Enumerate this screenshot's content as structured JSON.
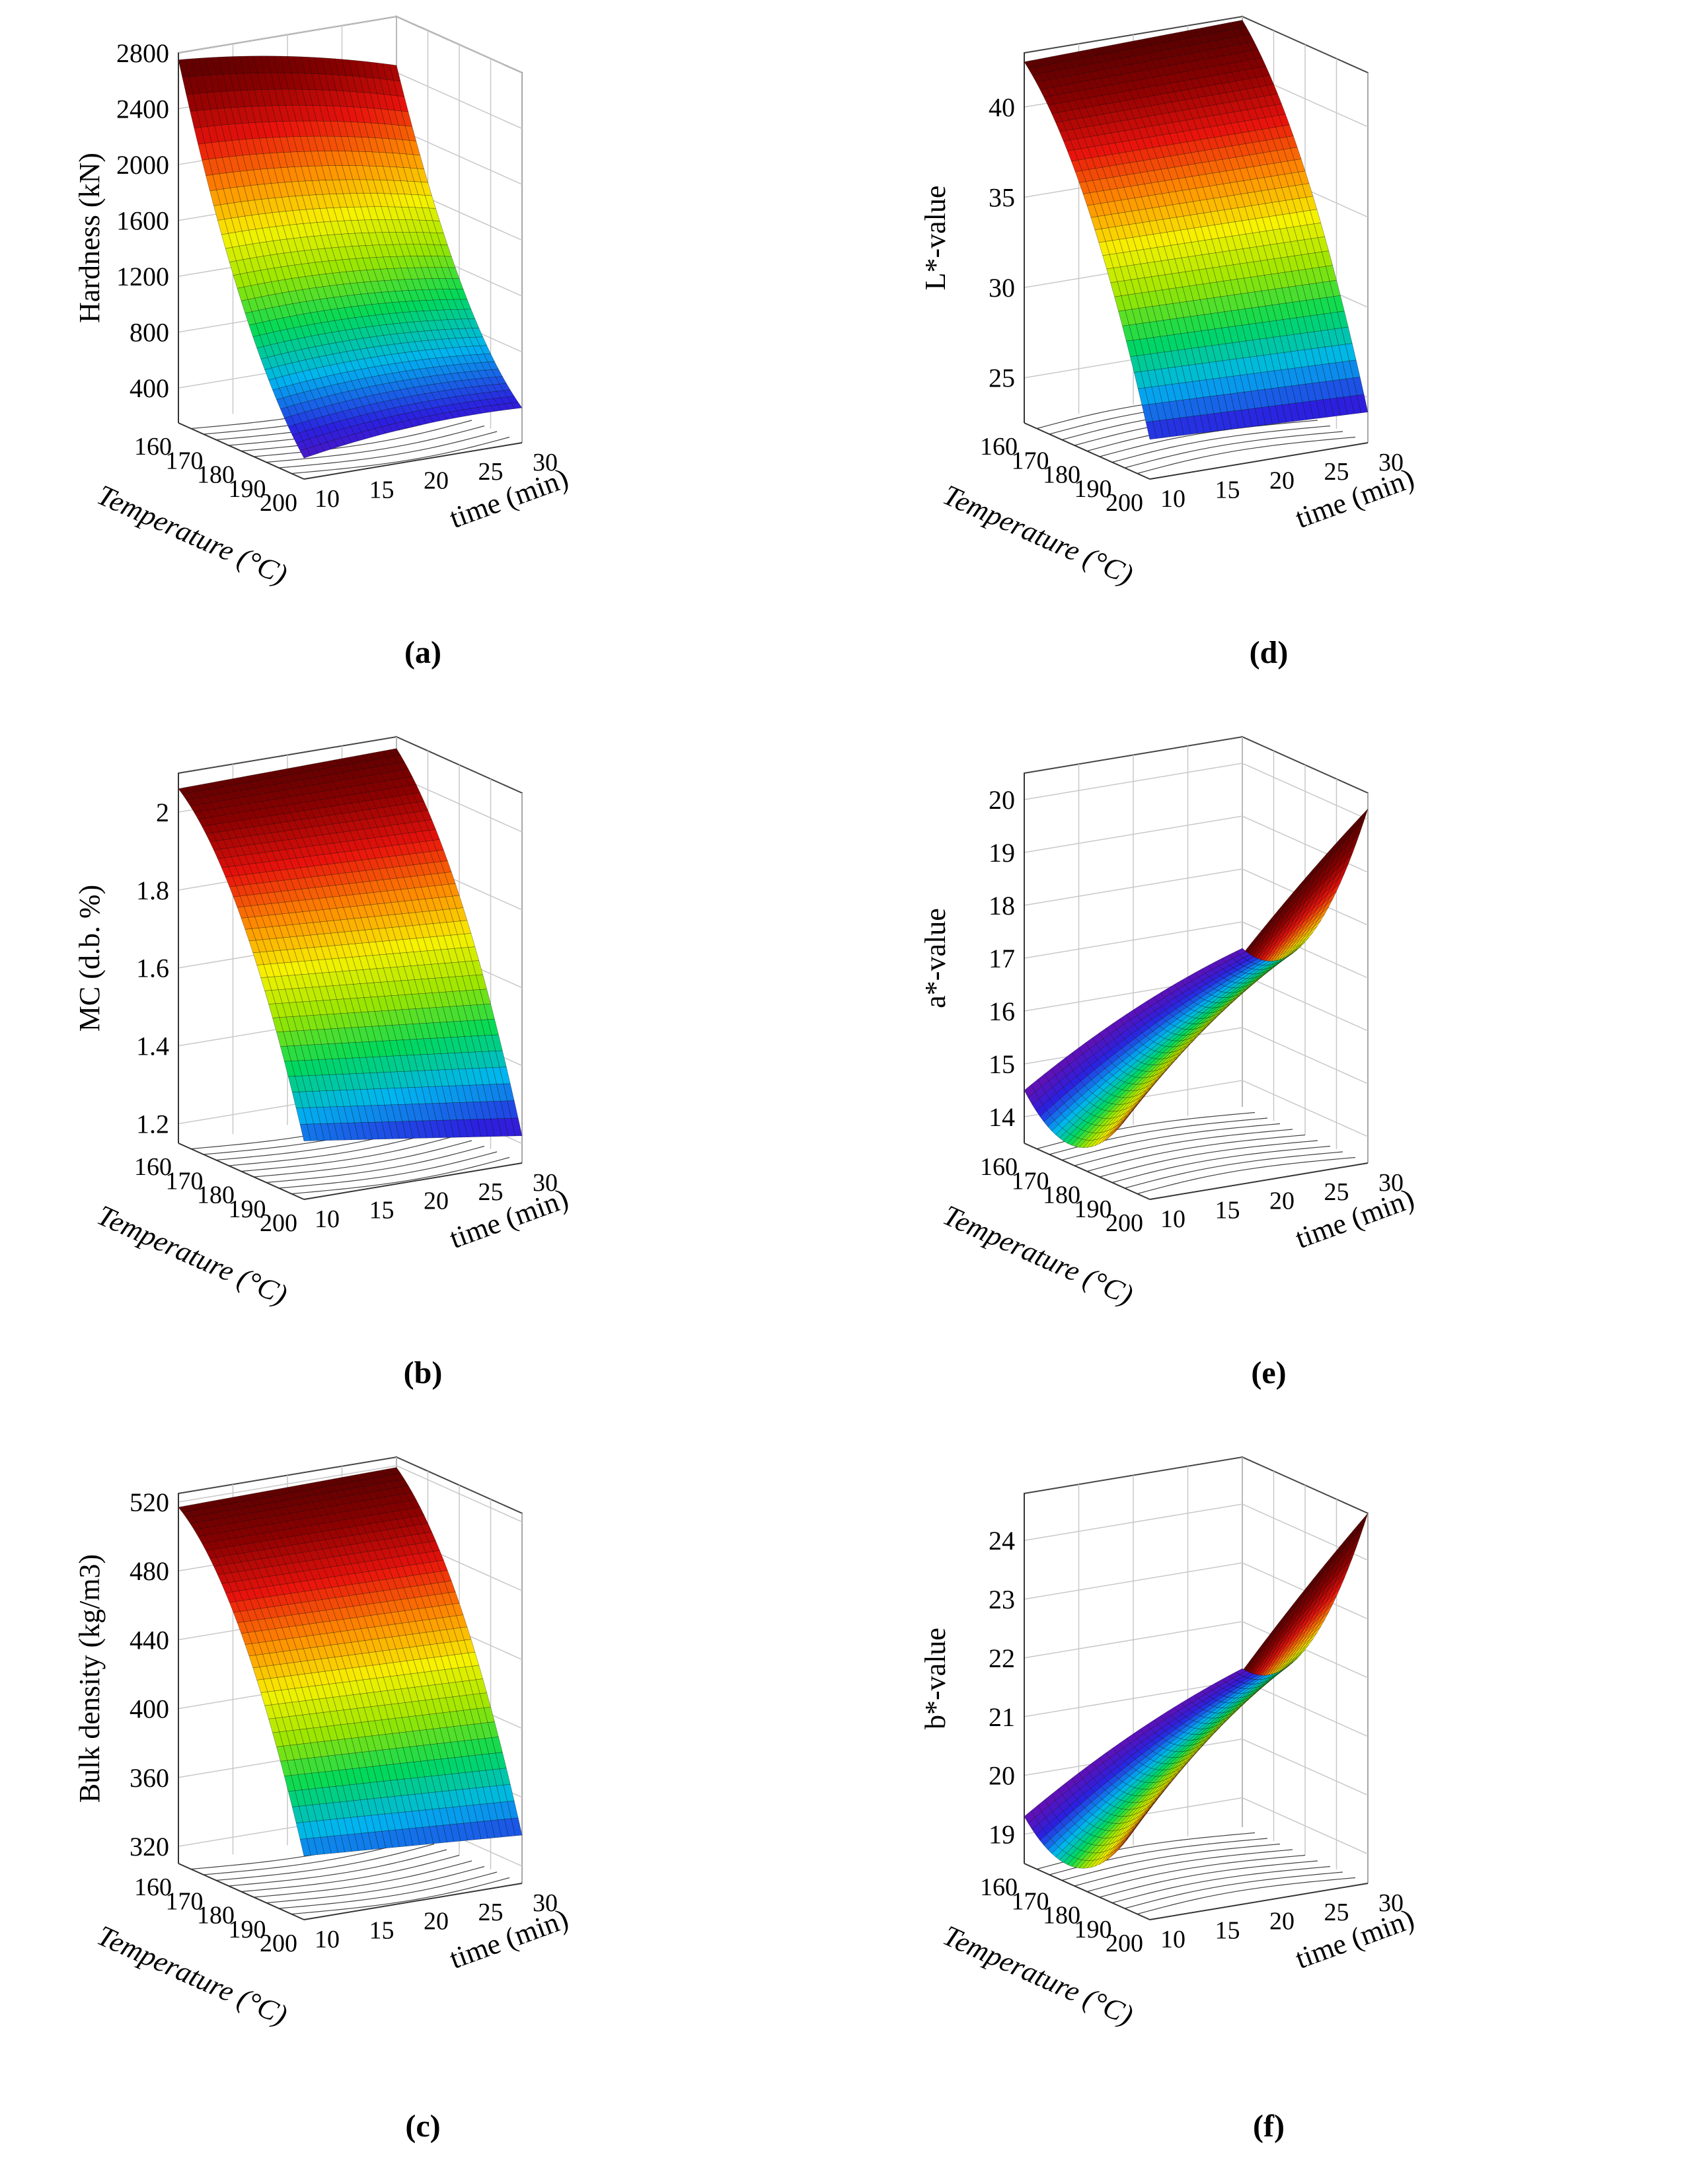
{
  "figure": {
    "panels": [
      {
        "caption": "(a)"
      },
      {
        "caption": "(d)"
      },
      {
        "caption": "(b)"
      },
      {
        "caption": "(e)"
      },
      {
        "caption": "(c)"
      },
      {
        "caption": "(f)"
      }
    ]
  },
  "colors": {
    "colormap": [
      "#6a0dad",
      "#2b20e0",
      "#00b5f0",
      "#00d95a",
      "#9be600",
      "#f7f200",
      "#ff8c00",
      "#e8120c",
      "#8b0000",
      "#4d0000"
    ],
    "grid": "#c8c8c8",
    "mesh": "#000000",
    "contour": "#404040"
  },
  "chart_data": [
    {
      "type": "surface",
      "panel_label": "(a)",
      "zlabel": "Hardness (kN)",
      "xlabel": "Temperature (°C)",
      "ylabel": "time (min)",
      "x_ticks": [
        160,
        170,
        180,
        190,
        200
      ],
      "y_ticks": [
        10,
        15,
        20,
        25,
        30
      ],
      "z_ticks": [
        400,
        800,
        1200,
        1600,
        2000,
        2400,
        2800
      ],
      "zlim": [
        150,
        2800
      ],
      "corner_values": {
        "t160_m10": 2750,
        "t160_m30": 2450,
        "t200_m10": 300,
        "t200_m30": 400,
        "curvature": 300
      },
      "color_order": "value"
    },
    {
      "type": "surface",
      "panel_label": "(d)",
      "zlabel": "L*-value",
      "xlabel": "Temperature (°C)",
      "ylabel": "time (min)",
      "x_ticks": [
        160,
        170,
        180,
        190,
        200
      ],
      "y_ticks": [
        10,
        15,
        20,
        25,
        30
      ],
      "z_ticks": [
        25,
        30,
        35,
        40
      ],
      "zlim": [
        22.5,
        43
      ],
      "corner_values": {
        "t160_m10": 42.5,
        "t160_m30": 42.8,
        "t200_m10": 24.7,
        "t200_m30": 24.2,
        "curvature": -2.5
      },
      "color_order": "value"
    },
    {
      "type": "surface",
      "panel_label": "(b)",
      "zlabel": "MC (d.b. %)",
      "xlabel": "Temperature (°C)",
      "ylabel": "time (min)",
      "x_ticks": [
        160,
        170,
        180,
        190,
        200
      ],
      "y_ticks": [
        10,
        15,
        20,
        25,
        30
      ],
      "z_ticks": [
        1.2,
        1.4,
        1.6,
        1.8,
        2.0
      ],
      "zlim": [
        1.15,
        2.1
      ],
      "corner_values": {
        "t160_m10": 2.06,
        "t160_m30": 2.07,
        "t200_m10": 1.3,
        "t200_m30": 1.22,
        "curvature": -0.12
      },
      "color_order": "value"
    },
    {
      "type": "surface",
      "panel_label": "(e)",
      "zlabel": "a*-value",
      "xlabel": "Temperature (°C)",
      "ylabel": "time (min)",
      "x_ticks": [
        160,
        170,
        180,
        190,
        200
      ],
      "y_ticks": [
        10,
        15,
        20,
        25,
        30
      ],
      "z_ticks": [
        14,
        15,
        16,
        17,
        18,
        19,
        20
      ],
      "zlim": [
        13.5,
        20.5
      ],
      "corner_values": {
        "t160_m10": 14.5,
        "t160_m30": 16.5,
        "t200_m10": 15.8,
        "t200_m30": 20.2,
        "curvature": 1.2
      },
      "color_order": "temperature"
    },
    {
      "type": "surface",
      "panel_label": "(c)",
      "zlabel": "Bulk density (kg/m3)",
      "xlabel": "Temperature (°C)",
      "ylabel": "time (min)",
      "x_ticks": [
        160,
        170,
        180,
        190,
        200
      ],
      "y_ticks": [
        10,
        15,
        20,
        25,
        30
      ],
      "z_ticks": [
        320,
        360,
        400,
        440,
        480,
        520
      ],
      "zlim": [
        310,
        525
      ],
      "corner_values": {
        "t160_m10": 517,
        "t160_m30": 519,
        "t200_m10": 347,
        "t200_m30": 338,
        "curvature": -28
      },
      "color_order": "value"
    },
    {
      "type": "surface",
      "panel_label": "(f)",
      "zlabel": "b*-value",
      "xlabel": "Temperature (°C)",
      "ylabel": "time (min)",
      "x_ticks": [
        160,
        170,
        180,
        190,
        200
      ],
      "y_ticks": [
        10,
        15,
        20,
        25,
        30
      ],
      "z_ticks": [
        19,
        20,
        21,
        22,
        23,
        24
      ],
      "zlim": [
        18.5,
        24.8
      ],
      "corner_values": {
        "t160_m10": 19.3,
        "t160_m30": 21.2,
        "t200_m10": 20.5,
        "t200_m30": 24.8,
        "curvature": 1.0
      },
      "color_order": "temperature"
    }
  ]
}
